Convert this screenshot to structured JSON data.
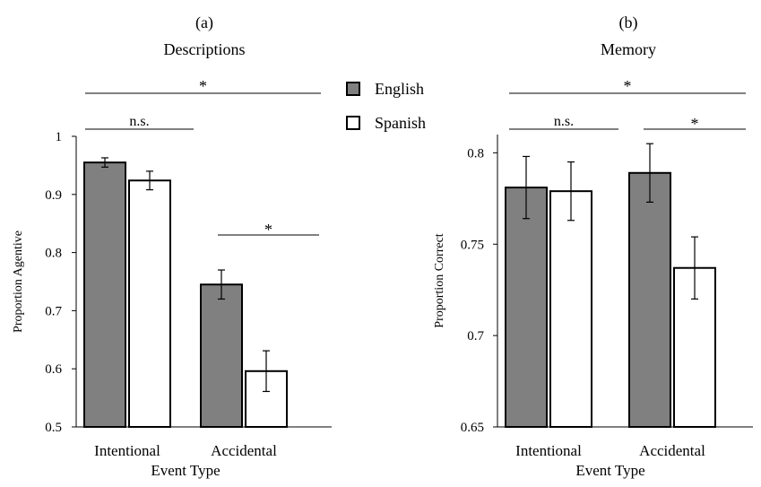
{
  "legend": [
    {
      "label": "English",
      "fill": "#808080"
    },
    {
      "label": "Spanish",
      "fill": "#ffffff"
    }
  ],
  "chart_data": [
    {
      "type": "bar",
      "panel_label": "(a)",
      "title": "Descriptions",
      "xlabel": "Event Type",
      "ylabel": "Proportion Agentive",
      "ylim": [
        0.5,
        1.0
      ],
      "yticks": [
        0.5,
        0.6,
        0.7,
        0.8,
        0.9,
        1.0
      ],
      "ytick_labels": [
        "0.5",
        "0.6",
        "0.7",
        "0.8",
        "0.9",
        "1"
      ],
      "categories": [
        "Intentional",
        "Accidental"
      ],
      "series": [
        {
          "name": "English",
          "values": [
            0.955,
            0.745
          ],
          "errors": [
            0.008,
            0.025
          ]
        },
        {
          "name": "Spanish",
          "values": [
            0.924,
            0.596
          ],
          "errors": [
            0.016,
            0.035
          ]
        }
      ],
      "annotations": {
        "overall": "*",
        "intentional": "n.s.",
        "accidental": "*"
      }
    },
    {
      "type": "bar",
      "panel_label": "(b)",
      "title": "Memory",
      "xlabel": "Event Type",
      "ylabel": "Proportion Correct",
      "ylim": [
        0.65,
        0.81
      ],
      "yticks": [
        0.65,
        0.7,
        0.75,
        0.8
      ],
      "ytick_labels": [
        "0.65",
        "0.7",
        "0.75",
        "0.8"
      ],
      "categories": [
        "Intentional",
        "Accidental"
      ],
      "series": [
        {
          "name": "English",
          "values": [
            0.781,
            0.789
          ],
          "errors": [
            0.017,
            0.016
          ]
        },
        {
          "name": "Spanish",
          "values": [
            0.779,
            0.737
          ],
          "errors": [
            0.016,
            0.017
          ]
        }
      ],
      "annotations": {
        "overall": "*",
        "intentional": "n.s.",
        "accidental": "*"
      }
    }
  ]
}
